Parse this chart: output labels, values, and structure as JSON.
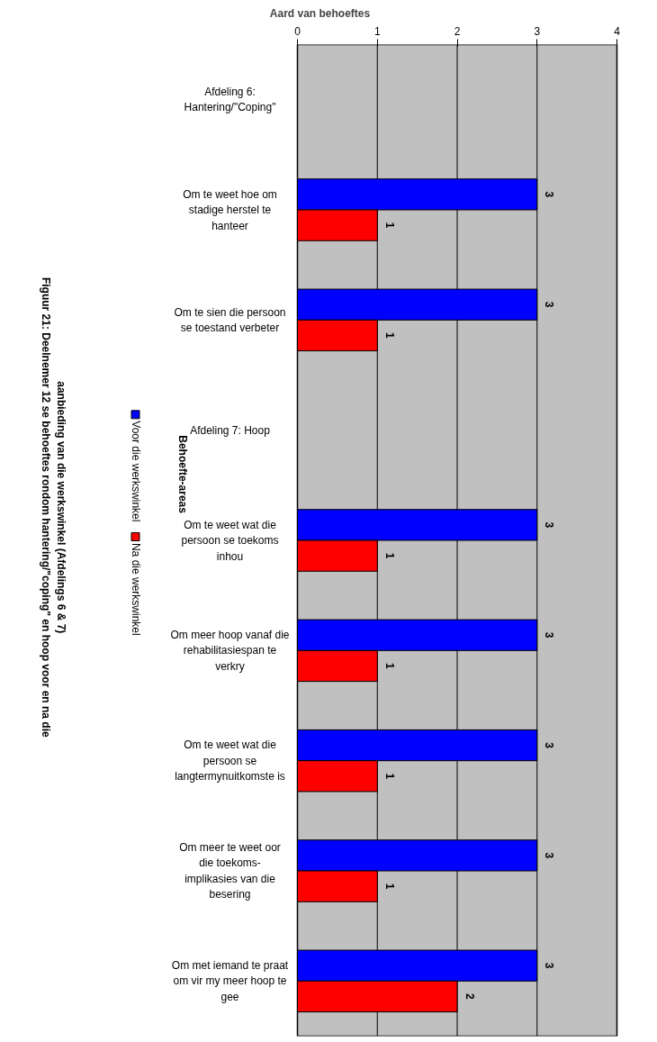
{
  "chart_data": {
    "type": "bar",
    "orientation": "horizontal",
    "title": "Figuur 21: Deelnemer 12 se behoeftes rondom hantering/\"coping\" en hoop voor en na die aanbieding van die werkswinkel (Afdelings 6 & 7)",
    "xlabel": "Aard van behoeftes",
    "ylabel": "Behoefte-areas",
    "categories": [
      "Afdeling 6: Hantering/\"Coping\"",
      "Om te weet hoe om stadige herstel te hanteer",
      "Om te sien die persoon se toestand verbeter",
      "Afdeling 7: Hoop",
      "Om te weet wat die persoon se toekoms inhou",
      "Om meer hoop vanaf die rehabilitasiespan te verkry",
      "Om te weet wat die persoon se langtermynuitkomste is",
      "Om meer te weet oor die toekoms-implikasies van die besering",
      "Om met iemand te praat om vir my meer hoop te gee"
    ],
    "series": [
      {
        "name": "Voor die werkswinkel",
        "color": "#0000ff",
        "values": [
          null,
          3,
          3,
          null,
          3,
          3,
          3,
          3,
          3
        ]
      },
      {
        "name": "Na die werkswinkel",
        "color": "#ff0000",
        "values": [
          null,
          1,
          1,
          null,
          1,
          1,
          1,
          1,
          2
        ]
      }
    ],
    "xlim": [
      0,
      4
    ],
    "xticks": [
      0,
      1,
      2,
      3,
      4
    ],
    "grid": "x",
    "legend": "left",
    "data_labels": true
  }
}
